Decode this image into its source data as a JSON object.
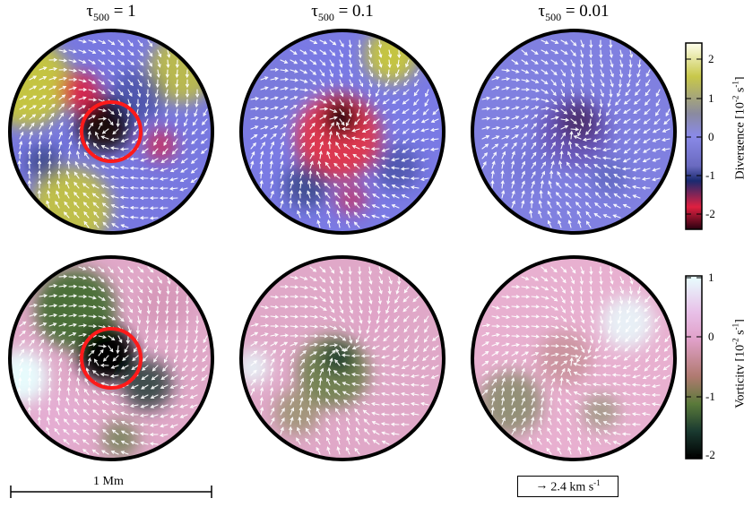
{
  "columns": [
    {
      "prefix": "τ",
      "sub": "500",
      "suffix": " = 1"
    },
    {
      "prefix": "τ",
      "sub": "500",
      "suffix": " = 0.1"
    },
    {
      "prefix": "τ",
      "sub": "500",
      "suffix": " = 0.01"
    }
  ],
  "rows": [
    {
      "quantity": "divergence",
      "highlight_circle_in_first_column": true
    },
    {
      "quantity": "vorticity",
      "highlight_circle_in_first_column": true
    }
  ],
  "colorbars": {
    "divergence": {
      "label": "Divergence [10",
      "label_sup": "-2",
      "label_end": " s",
      "label_sup2": "-1",
      "label_close": "]",
      "ticks": [
        "2",
        "1",
        "0",
        "-1",
        "-2"
      ],
      "range": [
        -2.4,
        2.4
      ],
      "colors": [
        "#ffffee",
        "#c8c84a",
        "#8a8a8a",
        "#8a8ae8",
        "#7070c8",
        "#1a2a70",
        "#e02040",
        "#2a0010"
      ]
    },
    "vorticity": {
      "label": "Vorticity [10",
      "label_sup": "-2",
      "label_end": " s",
      "label_sup2": "-1",
      "label_close": "]",
      "ticks": [
        "1",
        "0",
        "-1",
        "-2"
      ],
      "range": [
        -2,
        1
      ],
      "colors": [
        "#e8ffff",
        "#e8b0d8",
        "#d080a0",
        "#5a7a3a",
        "#1a3a30",
        "#000000"
      ]
    }
  },
  "scale_bar": {
    "label": "1 Mm"
  },
  "reference_vector": {
    "arrow": "→",
    "label": "2.4 km s",
    "sup": "-1"
  },
  "accent_colors": {
    "highlight_circle": "#ff1a1a",
    "arrows": "#ffffff",
    "disk_border": "#000000"
  }
}
